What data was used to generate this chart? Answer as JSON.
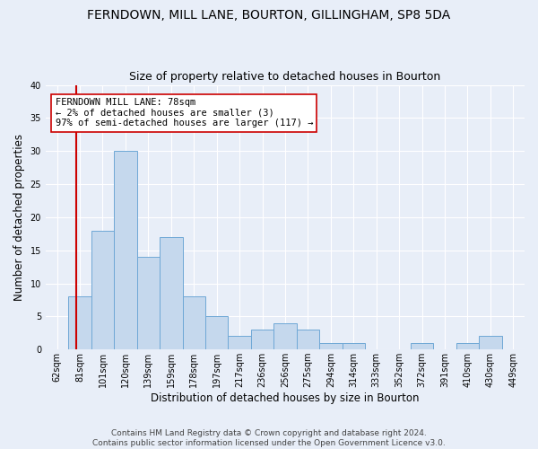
{
  "title1": "FERNDOWN, MILL LANE, BOURTON, GILLINGHAM, SP8 5DA",
  "title2": "Size of property relative to detached houses in Bourton",
  "xlabel": "Distribution of detached houses by size in Bourton",
  "ylabel": "Number of detached properties",
  "bin_labels": [
    "62sqm",
    "81sqm",
    "101sqm",
    "120sqm",
    "139sqm",
    "159sqm",
    "178sqm",
    "197sqm",
    "217sqm",
    "236sqm",
    "256sqm",
    "275sqm",
    "294sqm",
    "314sqm",
    "333sqm",
    "352sqm",
    "372sqm",
    "391sqm",
    "410sqm",
    "430sqm",
    "449sqm"
  ],
  "values": [
    0,
    8,
    18,
    30,
    14,
    17,
    8,
    5,
    2,
    3,
    4,
    3,
    1,
    1,
    0,
    0,
    1,
    0,
    1,
    2,
    0
  ],
  "bar_color": "#c5d8ed",
  "bar_edge_color": "#6fa8d6",
  "vline_color": "#cc0000",
  "annotation_text": "FERNDOWN MILL LANE: 78sqm\n← 2% of detached houses are smaller (3)\n97% of semi-detached houses are larger (117) →",
  "annotation_box_color": "#ffffff",
  "annotation_box_edge": "#cc0000",
  "footer1": "Contains HM Land Registry data © Crown copyright and database right 2024.",
  "footer2": "Contains public sector information licensed under the Open Government Licence v3.0.",
  "ylim": [
    0,
    40
  ],
  "yticks": [
    0,
    5,
    10,
    15,
    20,
    25,
    30,
    35,
    40
  ],
  "background_color": "#e8eef8",
  "grid_color": "#ffffff",
  "title1_fontsize": 10,
  "title2_fontsize": 9,
  "xlabel_fontsize": 8.5,
  "ylabel_fontsize": 8.5,
  "tick_fontsize": 7,
  "annotation_fontsize": 7.5,
  "footer_fontsize": 6.5
}
